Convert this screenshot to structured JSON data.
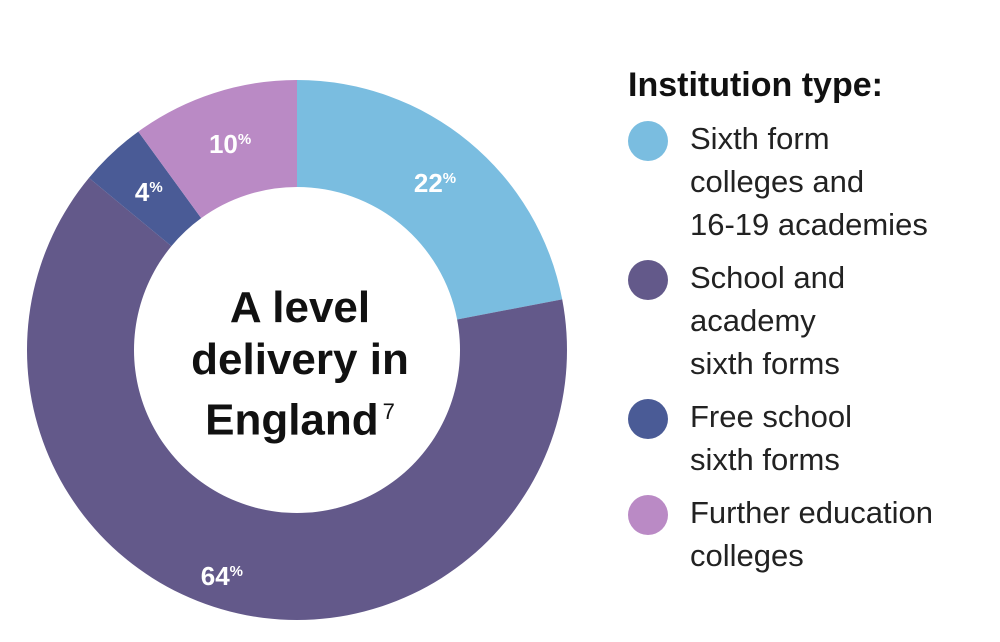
{
  "chart_data": {
    "type": "pie",
    "donut": true,
    "center_title": [
      "A level",
      "delivery in",
      "England"
    ],
    "center_title_footnote": "7",
    "legend_title": "Institution type:",
    "legend_position": "right",
    "slices": [
      {
        "label": [
          "Sixth form",
          "colleges and",
          "16-19 academies"
        ],
        "value": 22,
        "display": "22",
        "color": "#7abde0"
      },
      {
        "label": [
          "School and",
          "academy",
          "sixth forms"
        ],
        "value": 64,
        "display": "64",
        "color": "#63598a"
      },
      {
        "label": [
          "Free school",
          "sixth forms"
        ],
        "value": 4,
        "display": "4",
        "color": "#4a5b96"
      },
      {
        "label": [
          "Further education",
          "colleges"
        ],
        "value": 10,
        "display": "10",
        "color": "#ba8ac5"
      }
    ],
    "value_suffix": "%"
  }
}
